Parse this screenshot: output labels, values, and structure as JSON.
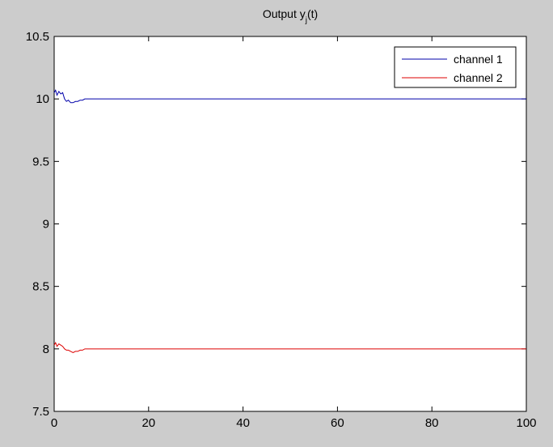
{
  "chart_data": {
    "type": "line",
    "title_main": "Output y",
    "title_sub": "j",
    "title_tail": "(t)",
    "xlabel": "",
    "ylabel": "",
    "xlim": [
      0,
      100
    ],
    "ylim": [
      7.5,
      10.5
    ],
    "x_ticks": [
      0,
      20,
      40,
      60,
      80,
      100
    ],
    "y_ticks": [
      7.5,
      8,
      8.5,
      9,
      9.5,
      10,
      10.5
    ],
    "y_tick_labels": [
      "7.5",
      "8",
      "8.5",
      "9",
      "9.5",
      "10",
      "10.5"
    ],
    "grid": false,
    "legend_position": "top-right",
    "series": [
      {
        "name": "channel 1",
        "color": "#0000aa",
        "x": [
          0,
          0.3,
          0.6,
          1.0,
          1.4,
          1.8,
          2.2,
          2.6,
          3.0,
          3.5,
          4.0,
          4.5,
          5.0,
          5.5,
          6.0,
          6.5,
          7.0,
          8.0,
          10,
          20,
          40,
          60,
          80,
          100
        ],
        "y": [
          10.05,
          10.07,
          10.03,
          10.06,
          10.04,
          10.05,
          10.0,
          9.98,
          9.99,
          9.97,
          9.97,
          9.98,
          9.98,
          9.99,
          9.99,
          10.0,
          10.0,
          10.0,
          10.0,
          10.0,
          10.0,
          10.0,
          10.0,
          10.0
        ]
      },
      {
        "name": "channel 2",
        "color": "#dd0000",
        "x": [
          0,
          0.3,
          0.6,
          1.0,
          1.4,
          1.8,
          2.2,
          2.6,
          3.0,
          3.5,
          4.0,
          4.5,
          5.0,
          5.5,
          6.0,
          6.5,
          7.0,
          8.0,
          10,
          20,
          40,
          60,
          80,
          100
        ],
        "y": [
          8.03,
          8.05,
          8.02,
          8.04,
          8.03,
          8.02,
          8.0,
          7.99,
          7.99,
          7.98,
          7.97,
          7.98,
          7.98,
          7.99,
          7.99,
          8.0,
          8.0,
          8.0,
          8.0,
          8.0,
          8.0,
          8.0,
          8.0,
          8.0
        ]
      }
    ]
  }
}
